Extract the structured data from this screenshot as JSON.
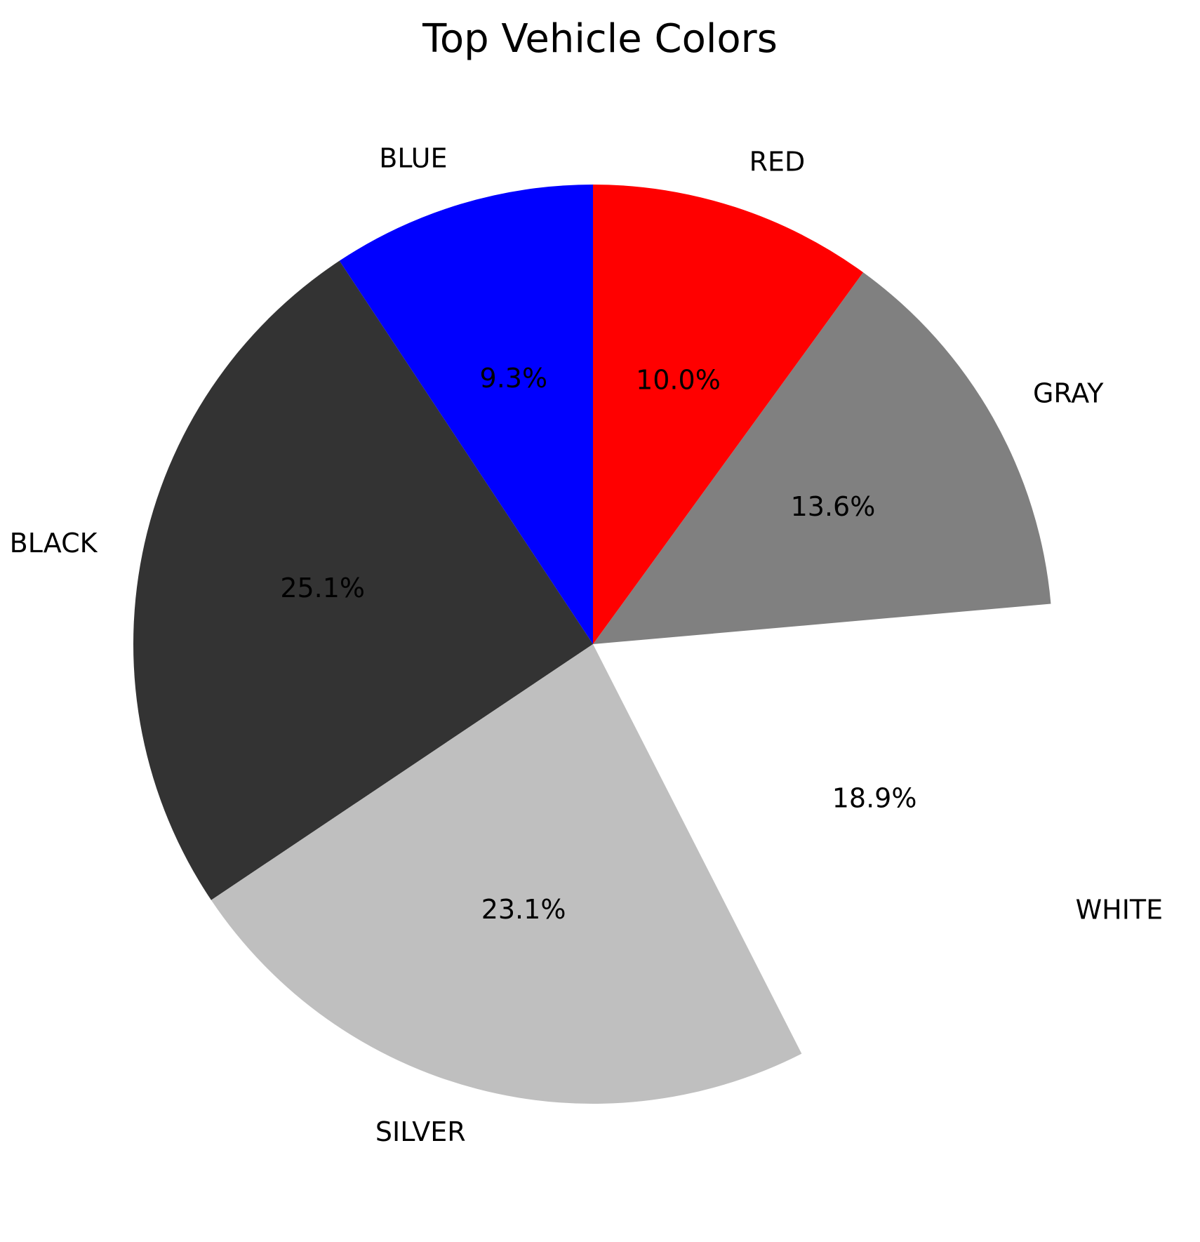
{
  "chart_data": {
    "type": "pie",
    "title": "Top Vehicle Colors",
    "slices": [
      {
        "label": "BLUE",
        "value": 9.3,
        "pct_label": "9.3%",
        "color": "#0000ff"
      },
      {
        "label": "BLACK",
        "value": 25.1,
        "pct_label": "25.1%",
        "color": "#333333"
      },
      {
        "label": "SILVER",
        "value": 23.1,
        "pct_label": "23.1%",
        "color": "#bfbfbf"
      },
      {
        "label": "WHITE",
        "value": 18.9,
        "pct_label": "18.9%",
        "color": "#ffffff"
      },
      {
        "label": "GRAY",
        "value": 13.6,
        "pct_label": "13.6%",
        "color": "#808080"
      },
      {
        "label": "RED",
        "value": 10.0,
        "pct_label": "10.0%",
        "color": "#ff0000"
      }
    ],
    "start_angle_deg": 90,
    "direction": "counterclockwise",
    "legend": "none"
  }
}
